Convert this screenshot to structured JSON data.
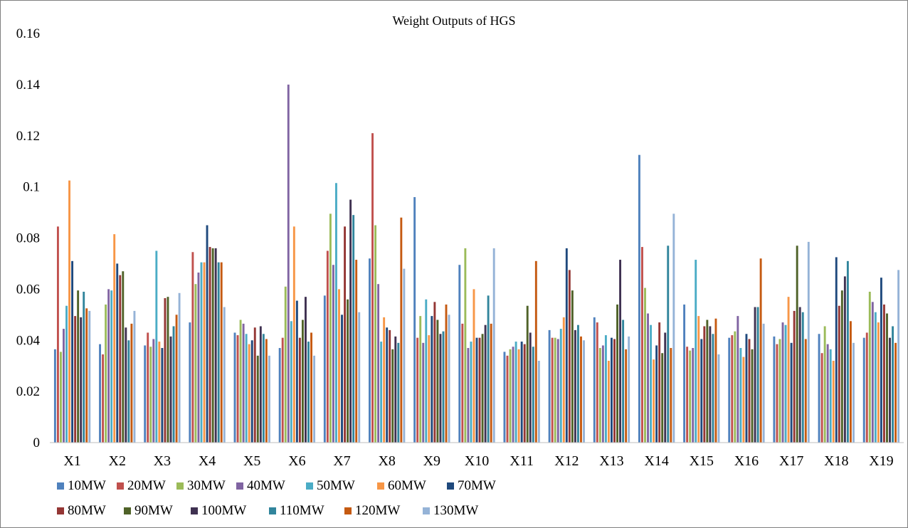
{
  "chart_data": {
    "type": "bar",
    "title": "Weight  Outputs of HGS",
    "xlabel": "",
    "ylabel": "",
    "ylim": [
      0,
      0.16
    ],
    "yticks": [
      0,
      0.02,
      0.04,
      0.06,
      0.08,
      0.1,
      0.12,
      0.14,
      0.16
    ],
    "ytick_labels": [
      "0",
      "0.02",
      "0.04",
      "0.06",
      "0.08",
      "0.1",
      "0.12",
      "0.14",
      "0.16"
    ],
    "grid": false,
    "legend_position": "bottom",
    "categories": [
      "X1",
      "X2",
      "X3",
      "X4",
      "X5",
      "X6",
      "X7",
      "X8",
      "X9",
      "X10",
      "X11",
      "X12",
      "X13",
      "X14",
      "X15",
      "X16",
      "X17",
      "X18",
      "X19"
    ],
    "series": [
      {
        "name": "10MW",
        "color": "#4F81BD",
        "values": [
          0.0365,
          0.0385,
          0.038,
          0.047,
          0.043,
          0.037,
          0.0575,
          0.072,
          0.096,
          0.0695,
          0.0355,
          0.044,
          0.049,
          0.1125,
          0.054,
          0.041,
          0.0415,
          0.0425,
          0.041
        ]
      },
      {
        "name": "20MW",
        "color": "#C0504D",
        "values": [
          0.0845,
          0.0345,
          0.043,
          0.0745,
          0.042,
          0.041,
          0.075,
          0.121,
          0.041,
          0.0465,
          0.034,
          0.041,
          0.047,
          0.0765,
          0.0375,
          0.042,
          0.0385,
          0.035,
          0.043
        ]
      },
      {
        "name": "30MW",
        "color": "#9BBB59",
        "values": [
          0.0355,
          0.054,
          0.0375,
          0.062,
          0.048,
          0.061,
          0.0895,
          0.085,
          0.0495,
          0.076,
          0.0365,
          0.041,
          0.037,
          0.0605,
          0.036,
          0.0435,
          0.0405,
          0.0455,
          0.059
        ]
      },
      {
        "name": "40MW",
        "color": "#8064A2",
        "values": [
          0.0445,
          0.06,
          0.0405,
          0.0665,
          0.0465,
          0.14,
          0.0695,
          0.062,
          0.039,
          0.037,
          0.0375,
          0.0405,
          0.038,
          0.0505,
          0.037,
          0.0495,
          0.047,
          0.0385,
          0.055
        ]
      },
      {
        "name": "50MW",
        "color": "#4BACC6",
        "values": [
          0.0535,
          0.0595,
          0.075,
          0.0705,
          0.0425,
          0.0475,
          0.1015,
          0.0395,
          0.056,
          0.0395,
          0.0395,
          0.0445,
          0.042,
          0.046,
          0.0715,
          0.037,
          0.046,
          0.0365,
          0.051
        ]
      },
      {
        "name": "60MW",
        "color": "#F79646",
        "values": [
          0.1025,
          0.0815,
          0.0395,
          0.0705,
          0.0385,
          0.0845,
          0.06,
          0.049,
          0.042,
          0.06,
          0.0365,
          0.049,
          0.032,
          0.0325,
          0.0495,
          0.0335,
          0.057,
          0.032,
          0.047
        ]
      },
      {
        "name": "70MW",
        "color": "#1F497D",
        "values": [
          0.071,
          0.07,
          0.037,
          0.085,
          0.04,
          0.0555,
          0.05,
          0.045,
          0.0495,
          0.041,
          0.0395,
          0.076,
          0.041,
          0.038,
          0.0405,
          0.0425,
          0.039,
          0.0725,
          0.0645
        ]
      },
      {
        "name": "80MW",
        "color": "#943634",
        "values": [
          0.0495,
          0.0655,
          0.0565,
          0.0765,
          0.045,
          0.041,
          0.0845,
          0.044,
          0.055,
          0.041,
          0.0385,
          0.0675,
          0.0405,
          0.047,
          0.0455,
          0.0405,
          0.0515,
          0.0535,
          0.054
        ]
      },
      {
        "name": "90MW",
        "color": "#4F6228",
        "values": [
          0.0595,
          0.067,
          0.057,
          0.076,
          0.034,
          0.048,
          0.056,
          0.0365,
          0.048,
          0.0425,
          0.0535,
          0.0595,
          0.054,
          0.035,
          0.048,
          0.0365,
          0.077,
          0.0595,
          0.0505
        ]
      },
      {
        "name": "100MW",
        "color": "#3F3151",
        "values": [
          0.049,
          0.045,
          0.0415,
          0.076,
          0.0455,
          0.057,
          0.095,
          0.0415,
          0.0425,
          0.046,
          0.043,
          0.044,
          0.0715,
          0.043,
          0.0455,
          0.053,
          0.053,
          0.065,
          0.041
        ]
      },
      {
        "name": "110MW",
        "color": "#31859C",
        "values": [
          0.059,
          0.04,
          0.0455,
          0.0705,
          0.0425,
          0.0395,
          0.089,
          0.039,
          0.0435,
          0.0575,
          0.0375,
          0.046,
          0.048,
          0.077,
          0.0425,
          0.053,
          0.051,
          0.071,
          0.0455
        ]
      },
      {
        "name": "120MW",
        "color": "#C55A11",
        "values": [
          0.0525,
          0.0465,
          0.05,
          0.0705,
          0.0405,
          0.043,
          0.0715,
          0.088,
          0.054,
          0.0465,
          0.071,
          0.0415,
          0.0365,
          0.037,
          0.0485,
          0.072,
          0.0405,
          0.0475,
          0.039
        ]
      },
      {
        "name": "130MW",
        "color": "#95B3D7",
        "values": [
          0.0515,
          0.0515,
          0.0585,
          0.053,
          0.034,
          0.034,
          0.051,
          0.068,
          0.05,
          0.076,
          0.032,
          0.04,
          0.0415,
          0.0895,
          0.0345,
          0.0465,
          0.0785,
          0.039,
          0.0675
        ]
      }
    ]
  }
}
